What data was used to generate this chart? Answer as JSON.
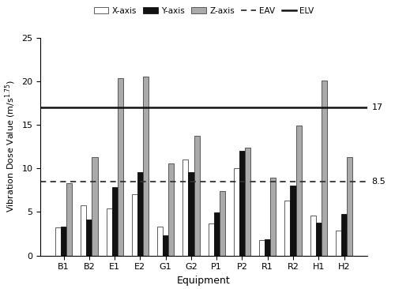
{
  "categories": [
    "B1",
    "B2",
    "E1",
    "E2",
    "G1",
    "G2",
    "P1",
    "P2",
    "R1",
    "R2",
    "H1",
    "H2"
  ],
  "x_axis": [
    3.2,
    5.8,
    5.4,
    7.0,
    3.3,
    11.0,
    3.7,
    10.0,
    1.8,
    6.3,
    4.6,
    2.9
  ],
  "y_axis": [
    3.3,
    4.1,
    7.8,
    9.6,
    2.3,
    9.6,
    4.9,
    12.0,
    1.9,
    8.0,
    3.8,
    4.8
  ],
  "z_axis": [
    8.3,
    11.3,
    20.3,
    20.5,
    10.6,
    13.7,
    7.4,
    12.4,
    8.9,
    14.9,
    20.1,
    11.3
  ],
  "EAV": 8.5,
  "ELV": 17.0,
  "EAV_label": "8.5",
  "ELV_label": "17",
  "bar_width": 0.22,
  "x_color": "white",
  "y_color": "#111111",
  "z_color": "#aaaaaa",
  "x_edgecolor": "#444444",
  "y_edgecolor": "#111111",
  "z_edgecolor": "#444444",
  "EAV_color": "#333333",
  "ELV_color": "#111111",
  "xlabel": "Equipment",
  "ylim": [
    0,
    25
  ],
  "yticks": [
    0,
    5,
    10,
    15,
    20,
    25
  ],
  "legend_labels": [
    "X-axis",
    "Y-axis",
    "Z-axis",
    "EAV",
    "ELV"
  ],
  "figsize": [
    5.0,
    3.66
  ],
  "dpi": 100
}
